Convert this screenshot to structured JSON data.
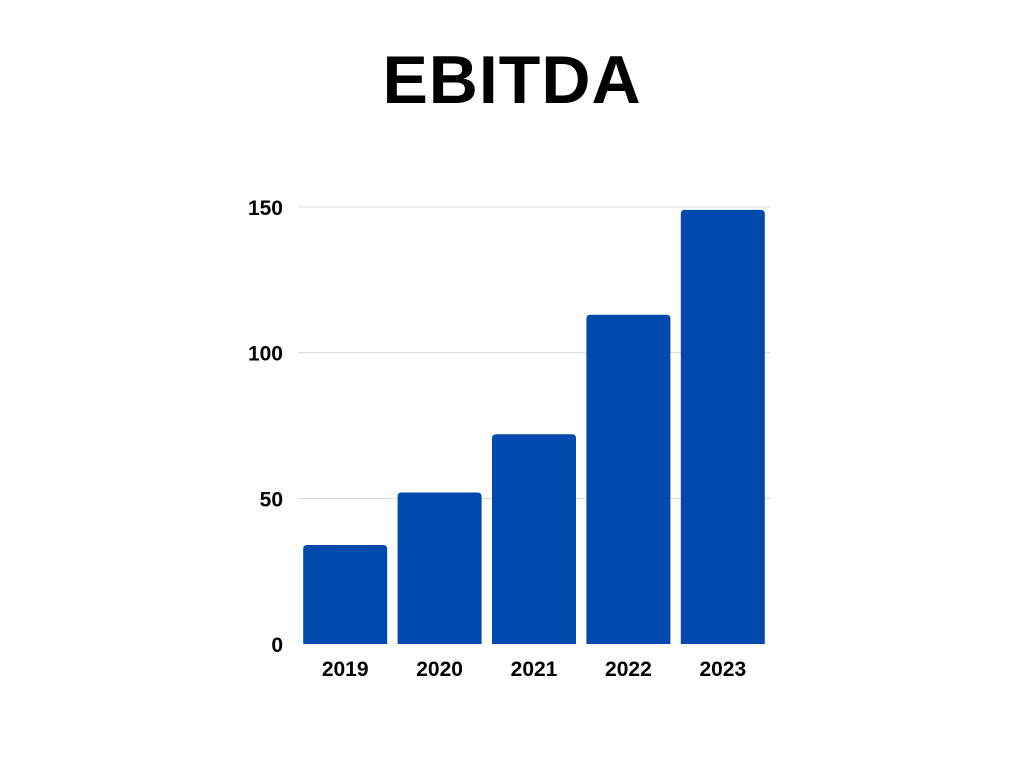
{
  "chart_data": {
    "type": "bar",
    "title": "EBITDA",
    "categories": [
      "2019",
      "2020",
      "2021",
      "2022",
      "2023"
    ],
    "values": [
      34,
      52,
      72,
      113,
      149
    ],
    "xlabel": "",
    "ylabel": "",
    "ylim": [
      0,
      150
    ],
    "yticks": [
      0,
      50,
      100,
      150
    ],
    "grid": true,
    "legend": "none",
    "bar_color": "#004AAD",
    "grid_color": "#D9D9D9"
  }
}
